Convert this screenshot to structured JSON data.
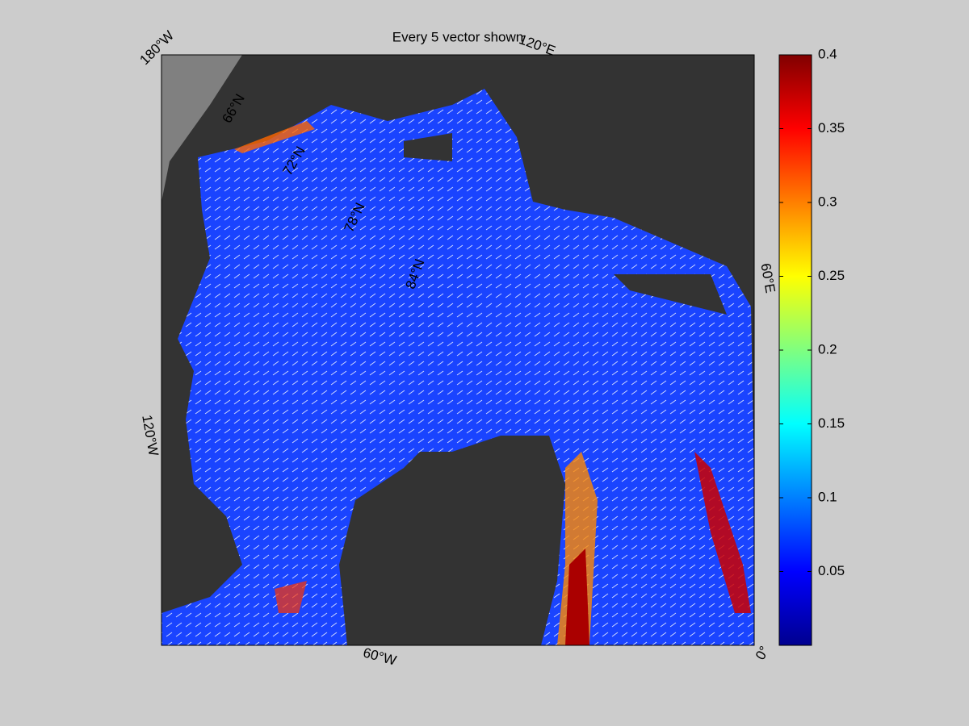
{
  "title": "Every 5 vector shown",
  "map": {
    "lon_labels": [
      "180°W",
      "120°E",
      "60°E",
      "0°",
      "60°W",
      "120°W"
    ],
    "lat_labels": [
      "66°N",
      "72°N",
      "78°N",
      "84°N"
    ]
  },
  "colorbar": {
    "lim": [
      0,
      0.4
    ],
    "ticks": [
      0.05,
      0.1,
      0.15,
      0.2,
      0.25,
      0.3,
      0.35,
      0.4
    ]
  }
}
